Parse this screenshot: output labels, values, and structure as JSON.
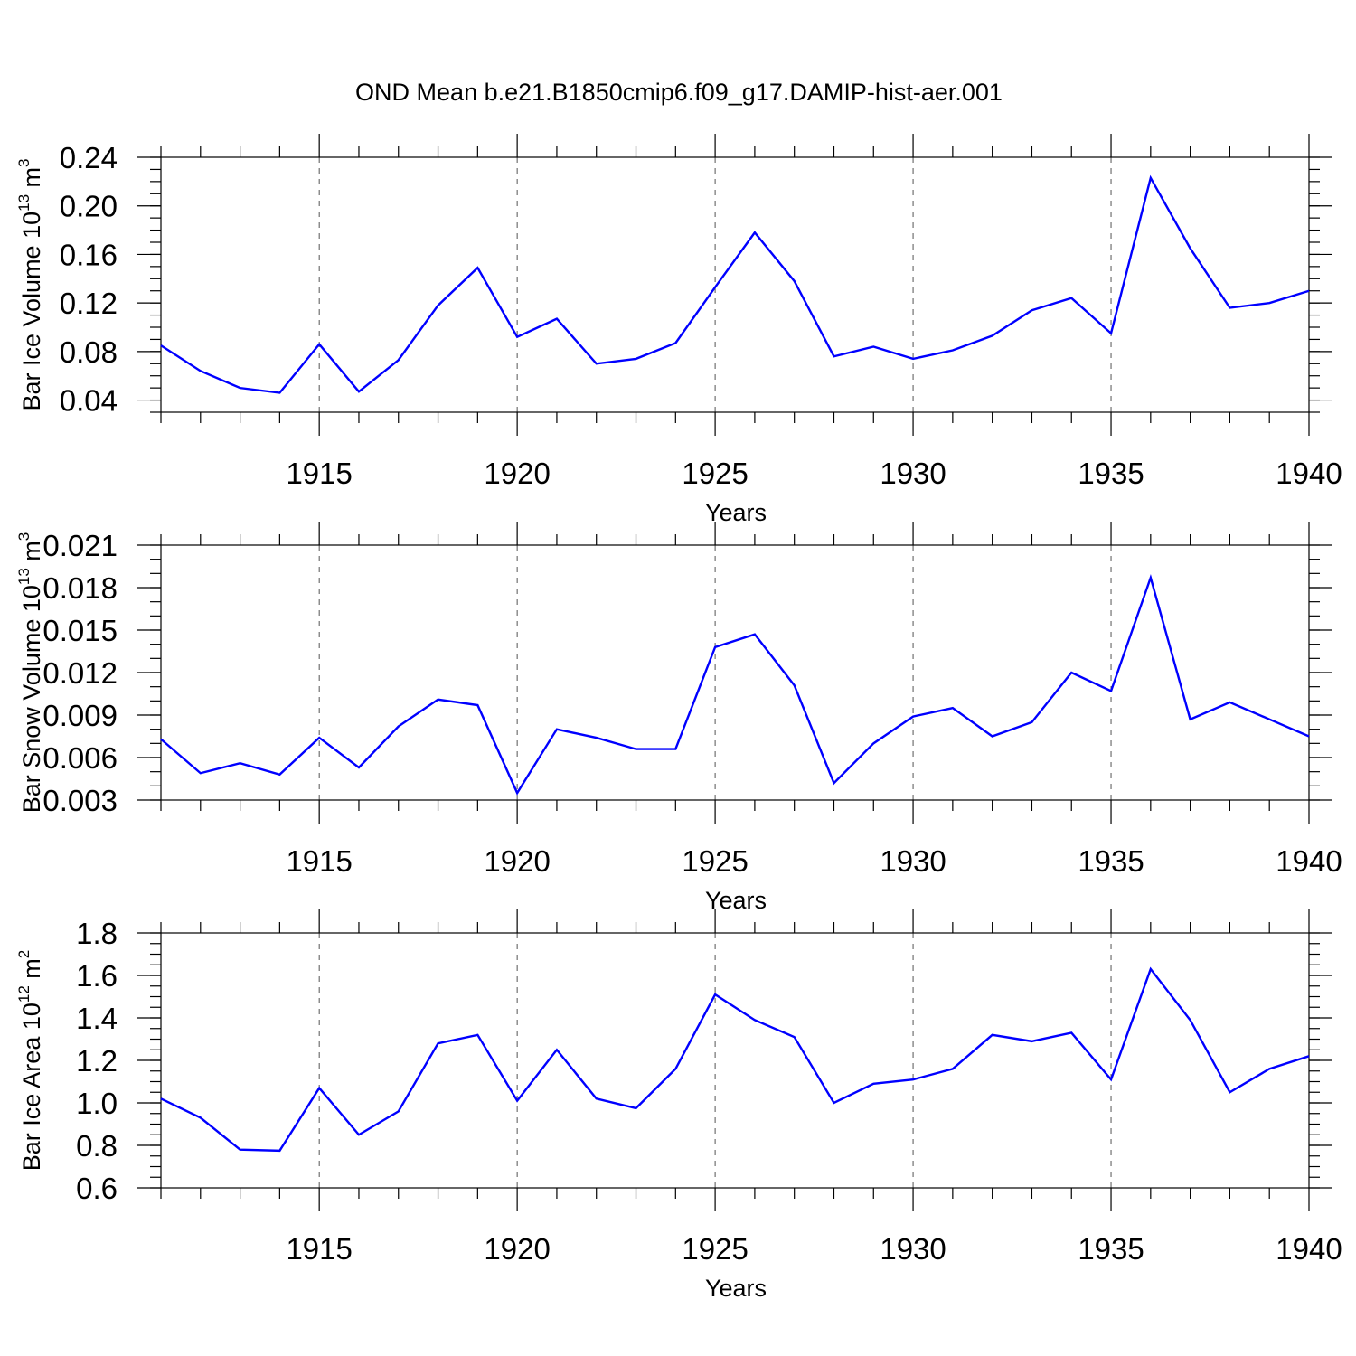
{
  "figure": {
    "title": "OND Mean b.e21.B1850cmip6.f09_g17.DAMIP-hist-aer.001"
  },
  "chart_data": [
    {
      "type": "line",
      "id": "ice-volume",
      "xlabel": "Years",
      "ylabel": {
        "text": "Bar Ice Volume 10",
        "sup": "13",
        "unit": " m",
        "unit_sup": "3"
      },
      "xlim": [
        1911,
        1940
      ],
      "ylim": [
        0.03,
        0.24
      ],
      "xticks": [
        1915,
        1920,
        1925,
        1930,
        1935,
        1940
      ],
      "yticks": [
        "0.04",
        "0.08",
        "0.12",
        "0.16",
        "0.20",
        "0.24"
      ],
      "yminor": 0.01,
      "x": [
        1911,
        1912,
        1913,
        1914,
        1915,
        1916,
        1917,
        1918,
        1919,
        1920,
        1921,
        1922,
        1923,
        1924,
        1925,
        1926,
        1927,
        1928,
        1929,
        1930,
        1931,
        1932,
        1933,
        1934,
        1935,
        1936,
        1937,
        1938,
        1939,
        1940
      ],
      "series": [
        {
          "name": "Bar Ice Volume",
          "color": "#0000ff",
          "values": [
            0.085,
            0.064,
            0.05,
            0.046,
            0.086,
            0.047,
            0.073,
            0.118,
            0.149,
            0.092,
            0.107,
            0.07,
            0.074,
            0.087,
            0.133,
            0.178,
            0.138,
            0.076,
            0.084,
            0.074,
            0.081,
            0.093,
            0.114,
            0.124,
            0.095,
            0.223,
            0.165,
            0.116,
            0.12,
            0.13
          ]
        }
      ]
    },
    {
      "type": "line",
      "id": "snow-volume",
      "xlabel": "Years",
      "ylabel": {
        "text": "Bar Snow Volume 10",
        "sup": "13",
        "unit": " m",
        "unit_sup": "3"
      },
      "xlim": [
        1911,
        1940
      ],
      "ylim": [
        0.003,
        0.021
      ],
      "xticks": [
        1915,
        1920,
        1925,
        1930,
        1935,
        1940
      ],
      "yticks": [
        "0.003",
        "0.006",
        "0.009",
        "0.012",
        "0.015",
        "0.018",
        "0.021"
      ],
      "yminor": 0.001,
      "x": [
        1911,
        1912,
        1913,
        1914,
        1915,
        1916,
        1917,
        1918,
        1919,
        1920,
        1921,
        1922,
        1923,
        1924,
        1925,
        1926,
        1927,
        1928,
        1929,
        1930,
        1931,
        1932,
        1933,
        1934,
        1935,
        1936,
        1937,
        1938,
        1939,
        1940
      ],
      "series": [
        {
          "name": "Bar Snow Volume",
          "color": "#0000ff",
          "values": [
            0.0073,
            0.0049,
            0.0056,
            0.0048,
            0.0074,
            0.0053,
            0.0082,
            0.0101,
            0.0097,
            0.0035,
            0.008,
            0.0074,
            0.0066,
            0.0066,
            0.0138,
            0.0147,
            0.0111,
            0.0042,
            0.007,
            0.0089,
            0.0095,
            0.0075,
            0.0085,
            0.012,
            0.0107,
            0.0187,
            0.0087,
            0.0099,
            0.0087,
            0.0075
          ]
        }
      ]
    },
    {
      "type": "line",
      "id": "ice-area",
      "xlabel": "Years",
      "ylabel": {
        "text": "Bar Ice Area 10",
        "sup": "12",
        "unit": " m",
        "unit_sup": "2"
      },
      "xlim": [
        1911,
        1940
      ],
      "ylim": [
        0.6,
        1.8
      ],
      "xticks": [
        1915,
        1920,
        1925,
        1930,
        1935,
        1940
      ],
      "yticks": [
        "0.6",
        "0.8",
        "1.0",
        "1.2",
        "1.4",
        "1.6",
        "1.8"
      ],
      "yminor": 0.05,
      "x": [
        1911,
        1912,
        1913,
        1914,
        1915,
        1916,
        1917,
        1918,
        1919,
        1920,
        1921,
        1922,
        1923,
        1924,
        1925,
        1926,
        1927,
        1928,
        1929,
        1930,
        1931,
        1932,
        1933,
        1934,
        1935,
        1936,
        1937,
        1938,
        1939,
        1940
      ],
      "series": [
        {
          "name": "Bar Ice Area",
          "color": "#0000ff",
          "values": [
            1.02,
            0.93,
            0.78,
            0.775,
            1.07,
            0.85,
            0.96,
            1.28,
            1.32,
            1.01,
            1.25,
            1.02,
            0.975,
            1.16,
            1.51,
            1.39,
            1.31,
            1.0,
            1.09,
            1.11,
            1.16,
            1.32,
            1.29,
            1.33,
            1.11,
            1.63,
            1.39,
            1.05,
            1.16,
            1.22
          ]
        }
      ]
    }
  ]
}
